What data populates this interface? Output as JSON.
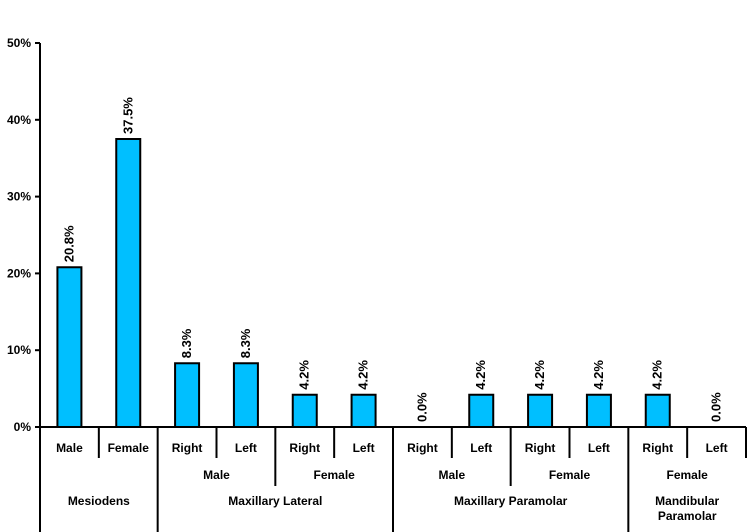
{
  "chart_data": {
    "type": "bar",
    "title": "",
    "xlabel": "",
    "ylabel": "",
    "ylim": [
      0,
      50
    ],
    "y_ticks": [
      "0%",
      "10%",
      "20%",
      "30%",
      "40%",
      "50%"
    ],
    "y_tick_values": [
      0,
      10,
      20,
      30,
      40,
      50
    ],
    "grid": false,
    "bar_color": "#00BFFF",
    "bar_outline_color": "#000000",
    "categories": [
      "Male",
      "Female",
      "Right",
      "Left",
      "Right",
      "Left",
      "Right",
      "Left",
      "Right",
      "Left",
      "Right",
      "Left"
    ],
    "values": [
      20.8,
      37.5,
      8.3,
      8.3,
      4.2,
      4.2,
      0.0,
      4.2,
      4.2,
      4.2,
      4.2,
      0.0
    ],
    "data_labels": [
      "20.8%",
      "37.5%",
      "8.3%",
      "8.3%",
      "4.2%",
      "4.2%",
      "0.0%",
      "4.2%",
      "4.2%",
      "4.2%",
      "4.2%",
      "0.0%"
    ],
    "sub_groups": [
      {
        "label": "Male",
        "span": [
          2,
          3
        ]
      },
      {
        "label": "Female",
        "span": [
          4,
          5
        ]
      },
      {
        "label": "Male",
        "span": [
          6,
          7
        ]
      },
      {
        "label": "Female",
        "span": [
          8,
          9
        ]
      },
      {
        "label": "Female",
        "span": [
          10,
          11
        ]
      }
    ],
    "groups": [
      {
        "label": "Mesiodens",
        "span": [
          0,
          1
        ]
      },
      {
        "label": "Maxillary Lateral",
        "span": [
          2,
          5
        ]
      },
      {
        "label": "Maxillary Paramolar",
        "span": [
          6,
          9
        ]
      },
      {
        "label": "Mandibular Paramolar",
        "lines": [
          "Mandibular",
          "Paramolar"
        ],
        "span": [
          10,
          11
        ]
      }
    ]
  }
}
